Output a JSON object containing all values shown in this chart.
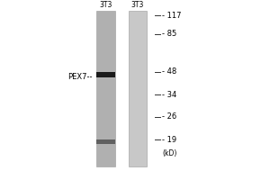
{
  "background_color": "#ffffff",
  "fig_width": 3.0,
  "fig_height": 2.0,
  "dpi": 100,
  "lane1_label": "3T3",
  "lane2_label": "3T3",
  "label_fontsize": 5.5,
  "pex7_label": "PEX7--",
  "pex7_fontsize": 6.0,
  "mw_markers": [
    "117",
    "85",
    "48",
    "34",
    "26",
    "19"
  ],
  "mw_fontsize": 6.0,
  "kd_label": "(kD)",
  "kd_fontsize": 5.5,
  "lane1_color": "#b0b0b0",
  "lane2_color": "#c8c8c8",
  "band1_color": "#1a1a1a",
  "band2_color": "#606060",
  "tick_color": "#333333"
}
